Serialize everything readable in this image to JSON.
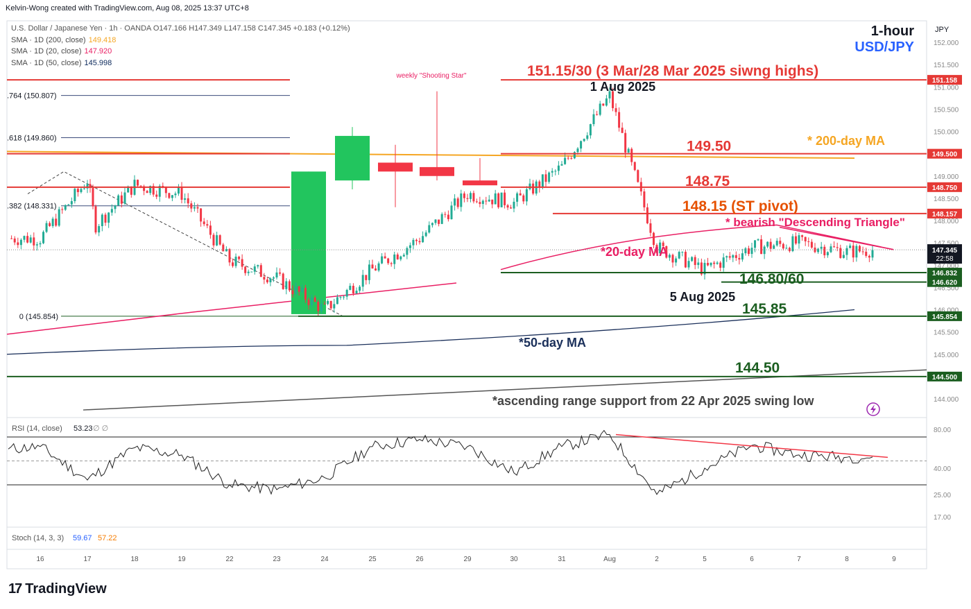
{
  "header": {
    "credit": "Kelvin-Wong created with TradingView.com, Aug 08, 2025 13:37 UTC+8",
    "title_line": "U.S. Dollar / Japanese Yen · 1h · OANDA  O147.166  H147.349  L147.158  C147.345  +0.183 (+0.12%)",
    "timeframe": "1-hour",
    "symbol": "USD/JPY",
    "currency": "JPY"
  },
  "legend": [
    {
      "label": "SMA · 1D (200, close)",
      "value": "149.418",
      "color": "#f5a623"
    },
    {
      "label": "SMA · 1D (20, close)",
      "value": "147.920",
      "color": "#e91e63"
    },
    {
      "label": "SMA · 1D (50, close)",
      "value": "145.998",
      "color": "#0d2a5c"
    }
  ],
  "colors": {
    "up": "#22ab94",
    "down": "#f23645",
    "resistance": "#e53935",
    "support": "#1b5e20",
    "ma200": "#f5a623",
    "ma20": "#e91e63",
    "ma50": "#1a2f5a"
  },
  "chart_data": [
    {
      "type": "line",
      "title": "USD/JPY 1-hour",
      "x_ticks": [
        "16",
        "17",
        "18",
        "19",
        "22",
        "23",
        "24",
        "25",
        "26",
        "29",
        "30",
        "31",
        "Aug",
        "2",
        "5",
        "6",
        "7",
        "8",
        "9"
      ],
      "ylim": [
        143.7,
        152.5
      ],
      "y_ticks": [
        "152.000",
        "151.500",
        "151.000",
        "150.500",
        "150.000",
        "149.500",
        "149.000",
        "148.500",
        "148.000",
        "147.500",
        "147.000",
        "146.500",
        "146.000",
        "145.500",
        "145.000",
        "144.500",
        "144.000"
      ],
      "price_series": [
        {
          "x": "16",
          "y": 147.6
        },
        {
          "x": "17",
          "y": 148.9
        },
        {
          "x": "17",
          "y": 147.9
        },
        {
          "x": "18",
          "y": 148.8
        },
        {
          "x": "19",
          "y": 148.6
        },
        {
          "x": "22",
          "y": 147.1
        },
        {
          "x": "23",
          "y": 146.7
        },
        {
          "x": "24",
          "y": 146.0
        },
        {
          "x": "25",
          "y": 146.9
        },
        {
          "x": "26",
          "y": 147.6
        },
        {
          "x": "29",
          "y": 148.6
        },
        {
          "x": "30",
          "y": 148.4
        },
        {
          "x": "31",
          "y": 149.2
        },
        {
          "x": "Aug",
          "y": 150.8
        },
        {
          "x": "2",
          "y": 147.4
        },
        {
          "x": "5",
          "y": 146.9
        },
        {
          "x": "6",
          "y": 147.4
        },
        {
          "x": "7",
          "y": 147.5
        },
        {
          "x": "8",
          "y": 147.3
        }
      ],
      "last_price": "147.345",
      "countdown": "22:58",
      "levels": [
        {
          "price": 151.158,
          "label": "151.15/30 (3 Mar/28 Mar 2025 siwng highs)",
          "tag": "151.158",
          "kind": "resistance"
        },
        {
          "price": 149.5,
          "label": "149.50",
          "tag": "149.500",
          "kind": "resistance"
        },
        {
          "price": 148.75,
          "label": "148.75",
          "tag": "148.750",
          "kind": "resistance"
        },
        {
          "price": 148.157,
          "label": "148.15 (ST pivot)",
          "tag": "148.157",
          "kind": "pivot"
        },
        {
          "price": 146.832,
          "label": "146.80/60",
          "tag": "146.832",
          "kind": "support"
        },
        {
          "price": 146.62,
          "label": "",
          "tag": "146.620",
          "kind": "support"
        },
        {
          "price": 145.854,
          "label": "145.85",
          "tag": "145.854",
          "kind": "support"
        },
        {
          "price": 144.5,
          "label": "144.50",
          "tag": "144.500",
          "kind": "support"
        }
      ],
      "fib_levels": [
        {
          "label": ".764 (150.807)",
          "price": 150.807
        },
        {
          "label": ".618 (149.860)",
          "price": 149.86
        },
        {
          "label": ".382 (148.331)",
          "price": 148.331
        },
        {
          "label": "0 (145.854)",
          "price": 145.854
        }
      ],
      "weekly_candles": [
        {
          "open": 145.9,
          "high": 149.1,
          "low": 145.9,
          "close": 149.1
        },
        {
          "open": 148.9,
          "high": 150.1,
          "low": 148.7,
          "close": 149.9
        },
        {
          "open": 149.3,
          "high": 149.7,
          "low": 148.3,
          "close": 149.1
        },
        {
          "open": 149.2,
          "high": 150.9,
          "low": 148.9,
          "close": 149.0
        },
        {
          "open": 148.9,
          "high": 149.4,
          "low": 148.8,
          "close": 148.8
        }
      ],
      "annotations": {
        "shooting_star": "weekly \"Shooting Star\"",
        "high_date": "1 Aug 2025",
        "low_date": "5 Aug 2025",
        "ma200_note": "* 200-day MA",
        "ma20_note": "*20-day MA",
        "ma50_note": "*50-day MA",
        "triangle_note": "* bearish \"Descending Triangle\"",
        "ascending_note": "*ascending range support from 22 Apr 2025 swing low"
      }
    },
    {
      "type": "line",
      "title": "RSI (14, close)",
      "label": "RSI (14, close)",
      "value": "53.23",
      "placeholders": "∅  ∅",
      "y_ticks": [
        "80.00",
        "40.00",
        "25.00",
        "17.00"
      ],
      "levels": [
        70,
        30
      ],
      "series": [
        {
          "x": "16",
          "y": 62
        },
        {
          "x": "17",
          "y": 34
        },
        {
          "x": "18",
          "y": 61
        },
        {
          "x": "19",
          "y": 55
        },
        {
          "x": "22",
          "y": 30
        },
        {
          "x": "23",
          "y": 26
        },
        {
          "x": "24",
          "y": 36
        },
        {
          "x": "25",
          "y": 62
        },
        {
          "x": "26",
          "y": 68
        },
        {
          "x": "29",
          "y": 62
        },
        {
          "x": "30",
          "y": 40
        },
        {
          "x": "31",
          "y": 62
        },
        {
          "x": "Aug",
          "y": 72
        },
        {
          "x": "2",
          "y": 22
        },
        {
          "x": "5",
          "y": 44
        },
        {
          "x": "6",
          "y": 63
        },
        {
          "x": "7",
          "y": 55
        },
        {
          "x": "8",
          "y": 53
        }
      ]
    },
    {
      "type": "line",
      "title": "Stoch (14, 3, 3)",
      "label": "Stoch (14, 3, 3)",
      "k": "59.67",
      "d": "57.22"
    }
  ],
  "brand": "TradingView"
}
